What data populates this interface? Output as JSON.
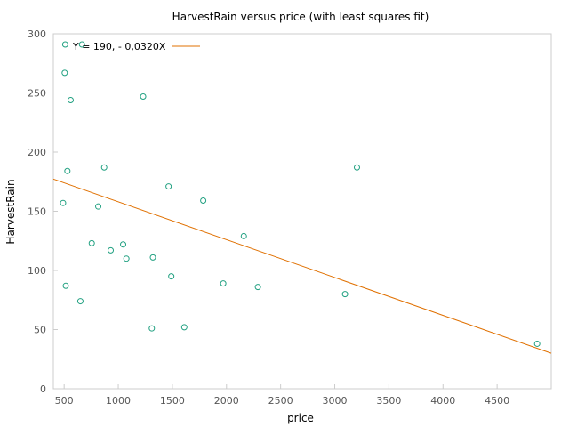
{
  "chart_data": {
    "type": "scatter",
    "title": "HarvestRain versus price (with least squares fit)",
    "xlabel": "price",
    "ylabel": "HarvestRain",
    "xlim": [
      400,
      5000
    ],
    "ylim": [
      0,
      300
    ],
    "xticks": [
      500,
      1000,
      1500,
      2000,
      2500,
      3000,
      3500,
      4000,
      4500
    ],
    "yticks": [
      0,
      50,
      100,
      150,
      200,
      250,
      300
    ],
    "grid": false,
    "legend_placement": "top-left",
    "points_color": "#20a080",
    "fit_color": "#e07000",
    "fit_label": "Y = 190, - 0,0320X",
    "fit": {
      "intercept": 190,
      "slope": -0.032
    },
    "series": [
      {
        "x": [
          510,
          505,
          665,
          560,
          1230,
          530,
          870,
          490,
          815,
          755,
          930,
          1045,
          1075,
          1320,
          1465,
          1490,
          1785,
          2160,
          1970,
          2290,
          1310,
          1610,
          650,
          515,
          3205,
          3095,
          4870
        ],
        "y": [
          291,
          267,
          291,
          244,
          247,
          184,
          187,
          157,
          154,
          123,
          117,
          122,
          110,
          111,
          171,
          95,
          159,
          129,
          89,
          86,
          51,
          52,
          74,
          87,
          187,
          80,
          38
        ]
      }
    ]
  }
}
